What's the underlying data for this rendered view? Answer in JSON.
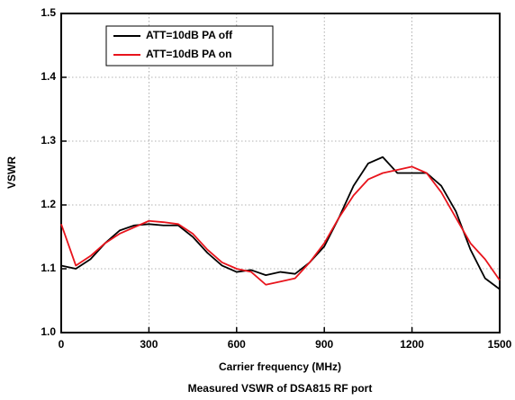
{
  "chart_data": {
    "type": "line",
    "caption": "Measured VSWR of DSA815 RF port",
    "x_label": "Carrier frequency (MHz)",
    "y_label": "VSWR",
    "x": [
      0,
      50,
      100,
      150,
      200,
      250,
      300,
      350,
      400,
      450,
      500,
      550,
      600,
      650,
      700,
      750,
      800,
      850,
      900,
      950,
      1000,
      1050,
      1100,
      1150,
      1200,
      1250,
      1300,
      1350,
      1400,
      1450,
      1500
    ],
    "series": [
      {
        "name": "ATT=10dB PA off",
        "color": "#000000",
        "values": [
          1.105,
          1.1,
          1.115,
          1.14,
          1.16,
          1.168,
          1.17,
          1.168,
          1.168,
          1.15,
          1.125,
          1.105,
          1.095,
          1.098,
          1.09,
          1.095,
          1.092,
          1.11,
          1.135,
          1.18,
          1.23,
          1.265,
          1.275,
          1.25,
          1.25,
          1.25,
          1.23,
          1.19,
          1.13,
          1.085,
          1.068
        ]
      },
      {
        "name": "ATT=10dB PA on",
        "color": "#e8141c",
        "values": [
          1.17,
          1.105,
          1.12,
          1.14,
          1.155,
          1.165,
          1.175,
          1.173,
          1.17,
          1.155,
          1.13,
          1.11,
          1.1,
          1.095,
          1.075,
          1.08,
          1.085,
          1.11,
          1.14,
          1.18,
          1.215,
          1.24,
          1.25,
          1.255,
          1.26,
          1.25,
          1.22,
          1.18,
          1.14,
          1.115,
          1.082
        ]
      }
    ],
    "xlim": [
      0,
      1500
    ],
    "xticks": [
      0,
      300,
      600,
      900,
      1200,
      1500
    ],
    "ylim": [
      1.0,
      1.5
    ],
    "yticks": [
      {
        "value": 1.0,
        "label": "1.0"
      },
      1.1,
      1.2,
      1.3,
      1.4,
      1.5
    ],
    "grid": true,
    "legend": "upper left"
  }
}
